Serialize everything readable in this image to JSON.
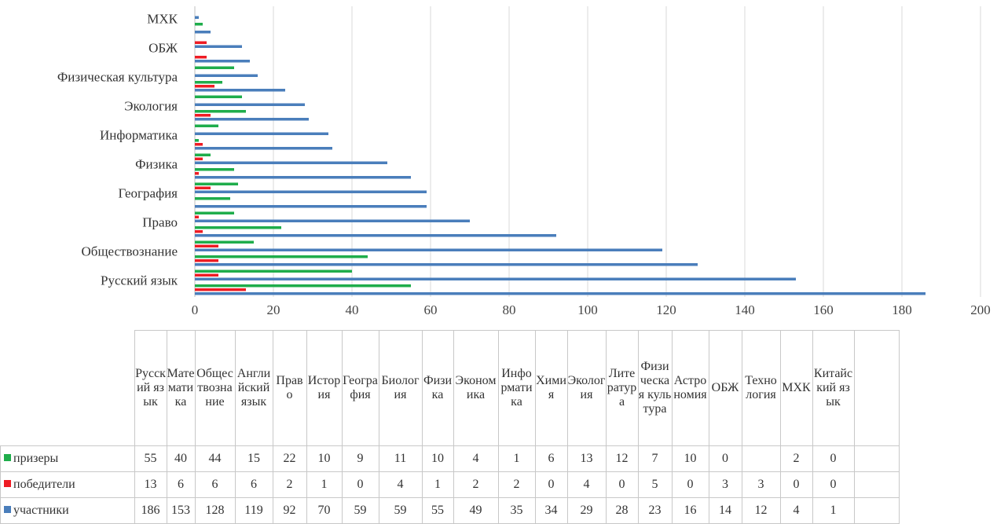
{
  "chart_data": {
    "type": "bar",
    "orientation": "horizontal",
    "categories": [
      "Русский язык",
      "Математика",
      "Обществознание",
      "Английский язык",
      "Право",
      "История",
      "География",
      "Биология",
      "Физика",
      "Экономика",
      "Информатика",
      "Химия",
      "Экология",
      "Литература",
      "Физическая культура",
      "Астрономия",
      "ОБЖ",
      "Технология",
      "МХК",
      "Китайский язык"
    ],
    "table_headers": [
      "Русский язык",
      "Математика",
      "Обществознание",
      "Английский язык",
      "Право",
      "История",
      "География",
      "Биология",
      "Физика",
      "Экономика",
      "Информатика",
      "Химия",
      "Экология",
      "Литература",
      "Физическая культура",
      "Астрономия",
      "ОБЖ",
      "Технология",
      "МХК",
      "Китайский язык"
    ],
    "axis_labels": [
      "Русский язык",
      "Обществознание",
      "Право",
      "География",
      "Физика",
      "Информатика",
      "Экология",
      "Физическая культура",
      "ОБЖ",
      "МХК"
    ],
    "series": [
      {
        "name": "участники",
        "color": "#4a7ebb",
        "values": [
          186,
          153,
          128,
          119,
          92,
          70,
          59,
          59,
          55,
          49,
          35,
          34,
          29,
          28,
          23,
          16,
          14,
          12,
          4,
          1
        ]
      },
      {
        "name": "победители",
        "color": "#ee1c24",
        "values": [
          13,
          6,
          6,
          6,
          2,
          1,
          0,
          4,
          1,
          2,
          2,
          0,
          4,
          0,
          5,
          0,
          3,
          3,
          0,
          0
        ]
      },
      {
        "name": "призеры",
        "color": "#1fad4b",
        "values": [
          55,
          40,
          44,
          15,
          22,
          10,
          9,
          11,
          10,
          4,
          1,
          6,
          13,
          12,
          7,
          10,
          0,
          null,
          2,
          0
        ]
      }
    ],
    "table_rows": [
      "призеры",
      "победители",
      "участники"
    ],
    "xlim": [
      0,
      200
    ],
    "xticks": [
      "0",
      "20",
      "40",
      "60",
      "80",
      "100",
      "120",
      "140",
      "160",
      "180",
      "200"
    ],
    "grid": true,
    "legend": "data-table"
  }
}
